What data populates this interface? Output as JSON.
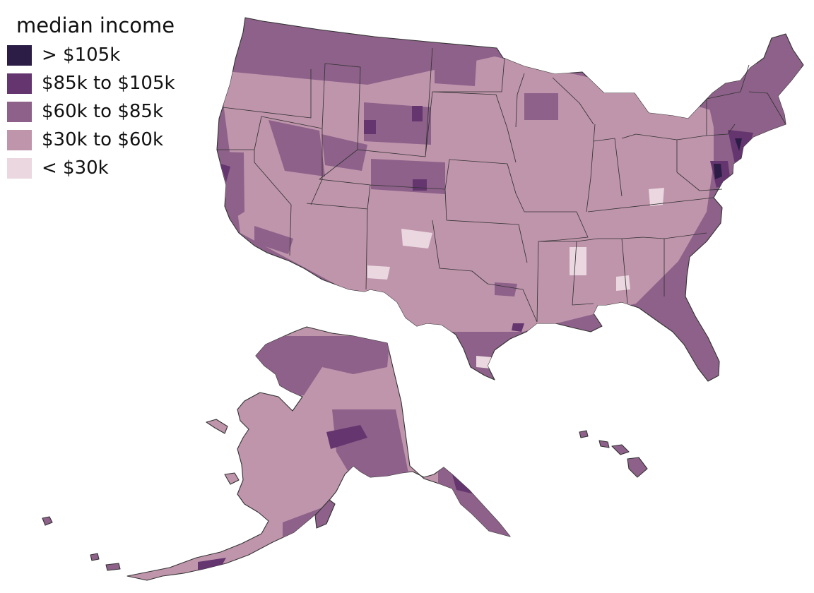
{
  "legend": {
    "title": "median income",
    "items": [
      {
        "label": "> $105k",
        "color": "#2b1d45"
      },
      {
        "label": "$85k to $105k",
        "color": "#64356f"
      },
      {
        "label": "$60k to $85k",
        "color": "#8d6189"
      },
      {
        "label": "$30k to $60k",
        "color": "#bf95ac"
      },
      {
        "label": "< $30k",
        "color": "#ead7df"
      }
    ]
  },
  "map_colors": {
    "border": "#333333"
  }
}
